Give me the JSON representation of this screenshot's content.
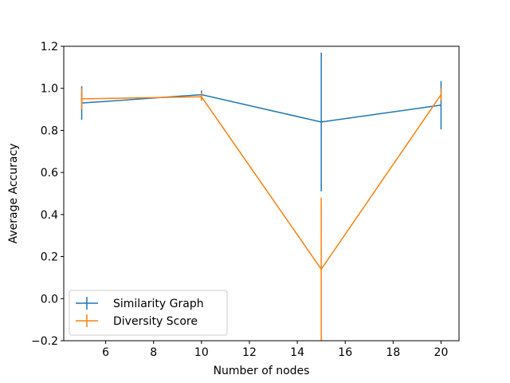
{
  "chart_data": {
    "type": "line",
    "title": "",
    "xlabel": "Number of nodes",
    "ylabel": "Average Accuracy",
    "xlim": [
      4.25,
      20.75
    ],
    "ylim": [
      -0.2,
      1.2
    ],
    "xticks": [
      6,
      8,
      10,
      12,
      14,
      16,
      18,
      20
    ],
    "yticks": [
      -0.2,
      0.0,
      0.2,
      0.4,
      0.6,
      0.8,
      1.0,
      1.2
    ],
    "xtick_labels": [
      "6",
      "8",
      "10",
      "12",
      "14",
      "16",
      "18",
      "20"
    ],
    "ytick_labels": [
      "−0.2",
      "0.0",
      "0.2",
      "0.4",
      "0.6",
      "0.8",
      "1.0",
      "1.2"
    ],
    "grid": false,
    "legend_position": "lower-left",
    "x": [
      5,
      10,
      15,
      20
    ],
    "series": [
      {
        "name": "Similarity Graph",
        "color": "#1f77b4",
        "values": [
          0.93,
          0.97,
          0.84,
          0.92
        ],
        "errors": [
          0.08,
          0.02,
          0.33,
          0.115
        ]
      },
      {
        "name": "Diversity Score",
        "color": "#ff7f0e",
        "values": [
          0.95,
          0.96,
          0.14,
          0.97
        ],
        "errors": [
          0.05,
          0.02,
          0.34,
          0.03
        ]
      }
    ]
  }
}
